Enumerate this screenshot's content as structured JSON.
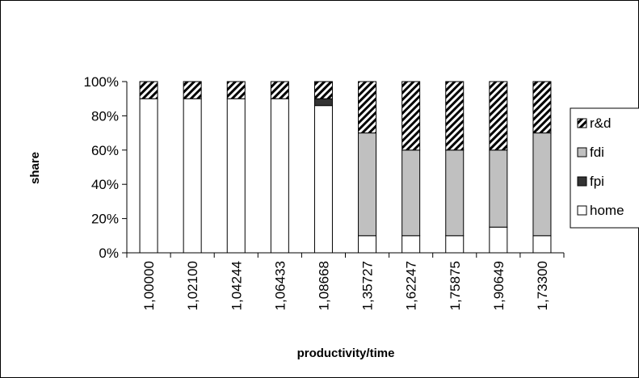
{
  "chart_data": {
    "type": "bar",
    "stacked": true,
    "percent": true,
    "xlabel": "productivity/time",
    "ylabel": "share",
    "ylim": [
      0,
      100
    ],
    "yticks": [
      "0%",
      "20%",
      "40%",
      "60%",
      "80%",
      "100%"
    ],
    "categories": [
      "1,00000",
      "1,02100",
      "1,04244",
      "1,06433",
      "1,08668",
      "1,35727",
      "1,62247",
      "1,75875",
      "1,90649",
      "1,73300"
    ],
    "series": [
      {
        "name": "home",
        "color": "#ffffff",
        "pattern": "solid",
        "values": [
          90,
          90,
          90,
          90,
          86,
          10,
          10,
          10,
          15,
          10
        ]
      },
      {
        "name": "fpi",
        "color": "#333333",
        "pattern": "solid",
        "values": [
          0,
          0,
          0,
          0,
          4,
          0,
          0,
          0,
          0,
          0
        ]
      },
      {
        "name": "fdi",
        "color": "#c0c0c0",
        "pattern": "solid",
        "values": [
          0,
          0,
          0,
          0,
          0,
          60,
          50,
          50,
          45,
          60
        ]
      },
      {
        "name": "r&d",
        "color": "#ffffff",
        "pattern": "diagonal-hatch",
        "values": [
          10,
          10,
          10,
          10,
          10,
          30,
          40,
          40,
          40,
          30
        ]
      }
    ],
    "legend": {
      "position": "right",
      "order": [
        "r&d",
        "fdi",
        "fpi",
        "home"
      ]
    },
    "grid": false
  }
}
